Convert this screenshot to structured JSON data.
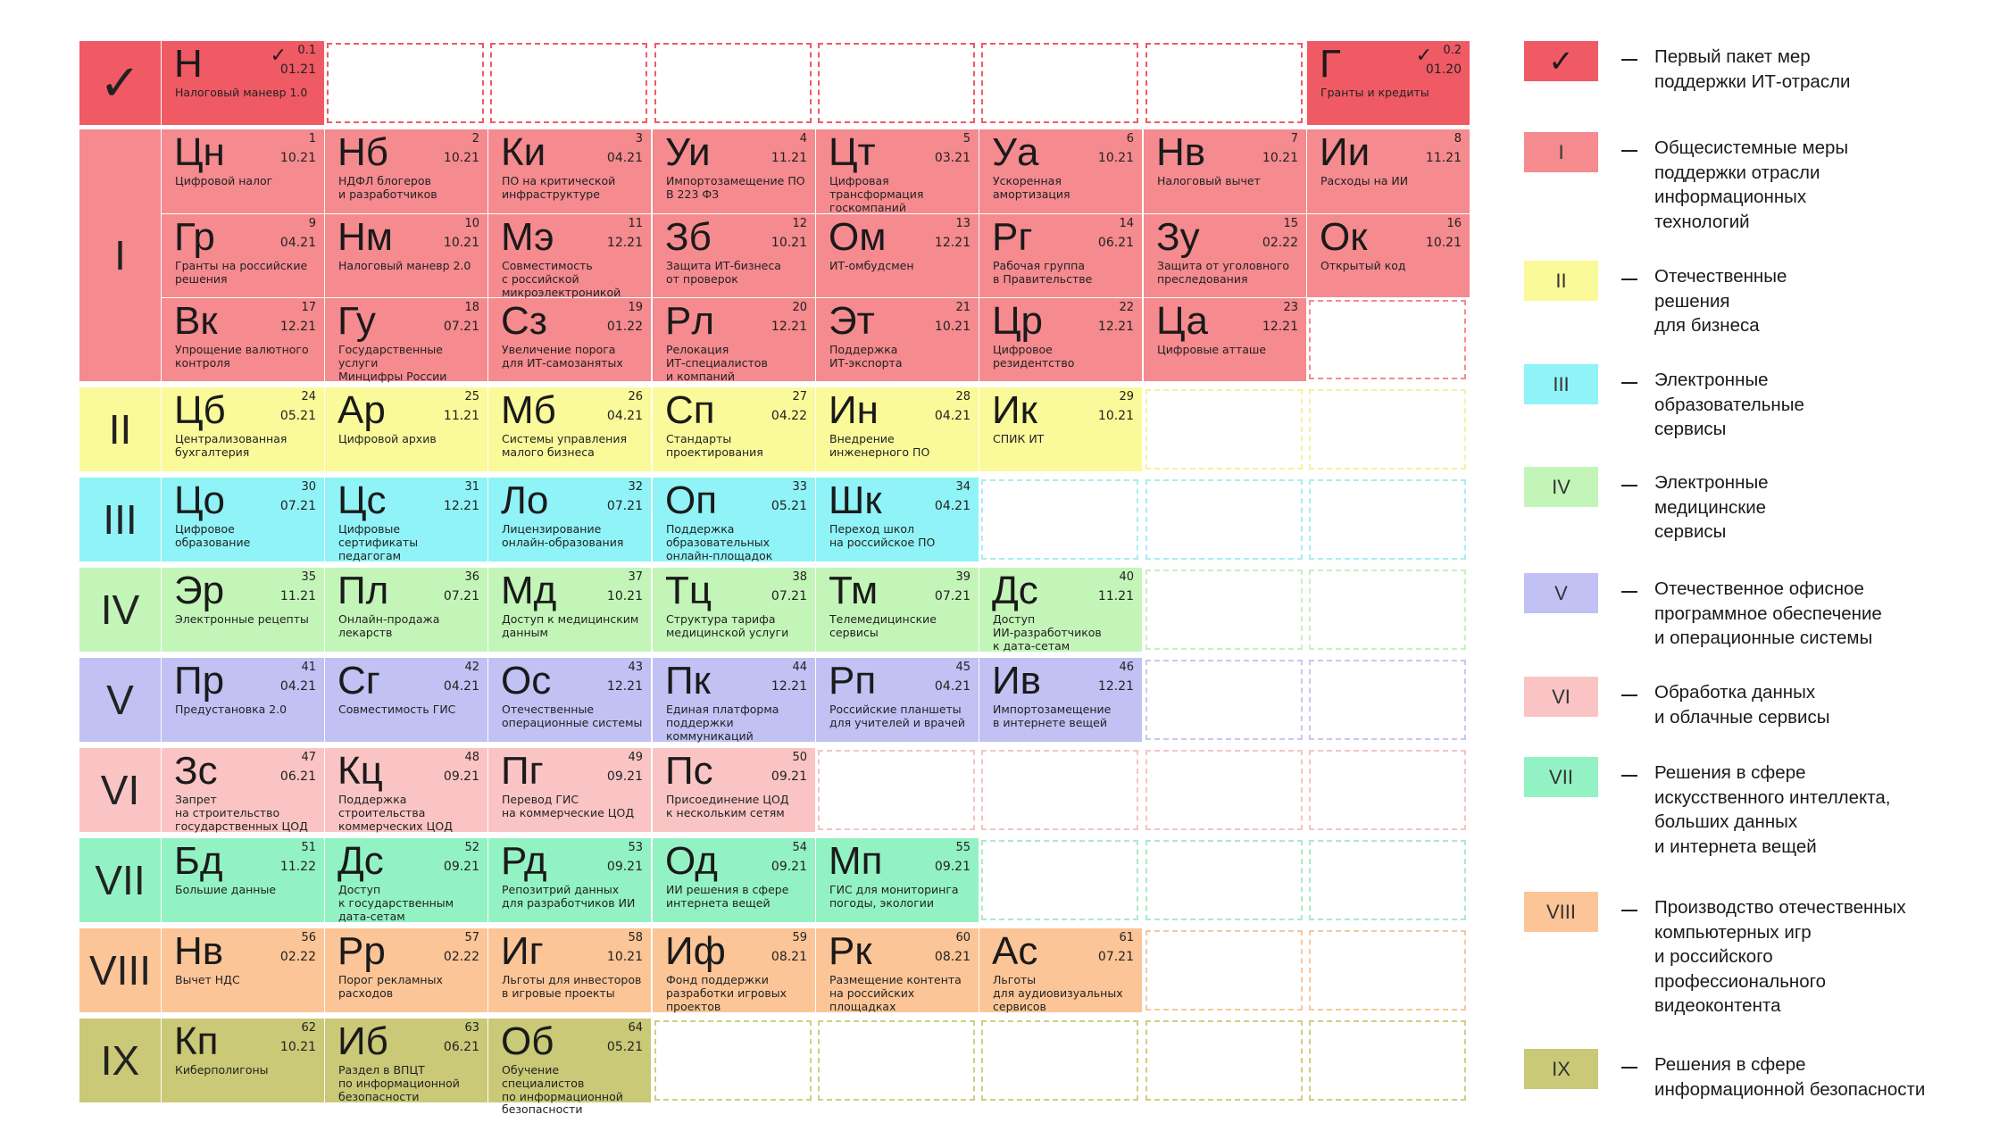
{
  "groups": [
    {
      "id": "check",
      "label": "✓",
      "color": "#f05a64",
      "empty_border": "#f05a64"
    },
    {
      "id": "I",
      "label": "I",
      "color": "#f58a8f",
      "empty_border": "#f58a8f"
    },
    {
      "id": "II",
      "label": "II",
      "color": "#fafa9a",
      "empty_border": "#f3f3a0"
    },
    {
      "id": "III",
      "label": "III",
      "color": "#8ff3f7",
      "empty_border": "#a6eef0"
    },
    {
      "id": "IV",
      "label": "IV",
      "color": "#c3f5b8",
      "empty_border": "#c8f0bf"
    },
    {
      "id": "V",
      "label": "V",
      "color": "#c1c1f4",
      "empty_border": "#c8c8f0"
    },
    {
      "id": "VI",
      "label": "VI",
      "color": "#fbc4c4",
      "empty_border": "#f5c4c4"
    },
    {
      "id": "VII",
      "label": "VII",
      "color": "#93f2c3",
      "empty_border": "#a8ecc8"
    },
    {
      "id": "VIII",
      "label": "VIII",
      "color": "#fcc597",
      "empty_border": "#f5c8a0"
    },
    {
      "id": "IX",
      "label": "IX",
      "color": "#c9c977",
      "empty_border": "#cfcf80"
    }
  ],
  "rows": [
    {
      "group": "check",
      "cells": [
        {
          "sym": "Н",
          "num": "0.1",
          "date": "01.21",
          "name": "Налоговый маневр 1.0",
          "check": true
        },
        null,
        null,
        null,
        null,
        null,
        null,
        {
          "sym": "Г",
          "num": "0.2",
          "date": "01.20",
          "name": "Гранты и кредиты",
          "check": true
        }
      ]
    },
    {
      "group": "I",
      "cells": [
        {
          "sym": "Цн",
          "num": "1",
          "date": "10.21",
          "name": "Цифровой налог"
        },
        {
          "sym": "Нб",
          "num": "2",
          "date": "10.21",
          "name": "НДФЛ блогеров\nи разработчиков"
        },
        {
          "sym": "Ки",
          "num": "3",
          "date": "04.21",
          "name": "ПО на критической\nинфраструктуре"
        },
        {
          "sym": "Уи",
          "num": "4",
          "date": "11.21",
          "name": "Импортозамещение ПО\nВ 223 ФЗ"
        },
        {
          "sym": "Цт",
          "num": "5",
          "date": "03.21",
          "name": "Цифровая\nтрансформация\nгоскомпаний"
        },
        {
          "sym": "Уа",
          "num": "6",
          "date": "10.21",
          "name": "Ускоренная\nамортизация"
        },
        {
          "sym": "Нв",
          "num": "7",
          "date": "10.21",
          "name": "Налоговый вычет"
        },
        {
          "sym": "Ии",
          "num": "8",
          "date": "11.21",
          "name": "Расходы на ИИ"
        }
      ]
    },
    {
      "group": "I",
      "cells": [
        {
          "sym": "Гр",
          "num": "9",
          "date": "04.21",
          "name": "Гранты на российские\nрешения"
        },
        {
          "sym": "Нм",
          "num": "10",
          "date": "10.21",
          "name": "Налоговый маневр 2.0"
        },
        {
          "sym": "Мэ",
          "num": "11",
          "date": "12.21",
          "name": "Совместимость\nс российской\nмикроэлектроникой"
        },
        {
          "sym": "Зб",
          "num": "12",
          "date": "10.21",
          "name": "Защита ИТ-бизнеса\nот проверок"
        },
        {
          "sym": "Ом",
          "num": "13",
          "date": "12.21",
          "name": "ИТ-омбудсмен"
        },
        {
          "sym": "Рг",
          "num": "14",
          "date": "06.21",
          "name": "Рабочая группа\nв Правительстве"
        },
        {
          "sym": "Зу",
          "num": "15",
          "date": "02.22",
          "name": "Защита от уголовного\nпреследования"
        },
        {
          "sym": "Ок",
          "num": "16",
          "date": "10.21",
          "name": "Открытый код"
        }
      ]
    },
    {
      "group": "I",
      "cells": [
        {
          "sym": "Вк",
          "num": "17",
          "date": "12.21",
          "name": "Упрощение валютного\nконтроля"
        },
        {
          "sym": "Гу",
          "num": "18",
          "date": "07.21",
          "name": "Государственные\nуслуги\nМинцифры России"
        },
        {
          "sym": "Сз",
          "num": "19",
          "date": "01.22",
          "name": "Увеличение порога\nдля ИТ-самозанятых"
        },
        {
          "sym": "Рл",
          "num": "20",
          "date": "12.21",
          "name": "Релокация\nИТ-специалистов\nи компаний"
        },
        {
          "sym": "Эт",
          "num": "21",
          "date": "10.21",
          "name": "Поддержка\nИТ-экспорта"
        },
        {
          "sym": "Цр",
          "num": "22",
          "date": "12.21",
          "name": "Цифровое резидентство"
        },
        {
          "sym": "Ца",
          "num": "23",
          "date": "12.21",
          "name": "Цифровые атташе"
        },
        null
      ]
    },
    {
      "group": "II",
      "cells": [
        {
          "sym": "Цб",
          "num": "24",
          "date": "05.21",
          "name": "Централизованная\nбухгалтерия"
        },
        {
          "sym": "Ар",
          "num": "25",
          "date": "11.21",
          "name": "Цифровой архив"
        },
        {
          "sym": "Мб",
          "num": "26",
          "date": "04.21",
          "name": "Системы управления\nмалого бизнеса"
        },
        {
          "sym": "Сп",
          "num": "27",
          "date": "04.22",
          "name": "Стандарты\nпроектирования"
        },
        {
          "sym": "Ин",
          "num": "28",
          "date": "04.21",
          "name": "Внедрение\nинженерного ПО"
        },
        {
          "sym": "Ик",
          "num": "29",
          "date": "10.21",
          "name": "СПИК ИТ"
        },
        null,
        null
      ]
    },
    {
      "group": "III",
      "cells": [
        {
          "sym": "Цо",
          "num": "30",
          "date": "07.21",
          "name": "Цифровое\nобразование"
        },
        {
          "sym": "Цс",
          "num": "31",
          "date": "12.21",
          "name": "Цифровые\nсертификаты\nпедагогам"
        },
        {
          "sym": "Ло",
          "num": "32",
          "date": "07.21",
          "name": "Лицензирование\nонлайн-образования"
        },
        {
          "sym": "Оп",
          "num": "33",
          "date": "05.21",
          "name": "Поддержка\nобразовательных\nонлайн-площадок"
        },
        {
          "sym": "Шк",
          "num": "34",
          "date": "04.21",
          "name": "Переход школ\nна российское ПО"
        },
        null,
        null,
        null
      ]
    },
    {
      "group": "IV",
      "cells": [
        {
          "sym": "Эр",
          "num": "35",
          "date": "11.21",
          "name": "Электронные рецепты"
        },
        {
          "sym": "Пл",
          "num": "36",
          "date": "07.21",
          "name": "Онлайн-продажа\nлекарств"
        },
        {
          "sym": "Мд",
          "num": "37",
          "date": "10.21",
          "name": "Доступ к медицинским\nданным"
        },
        {
          "sym": "Тц",
          "num": "38",
          "date": "07.21",
          "name": "Структура тарифа\nмедицинской услуги"
        },
        {
          "sym": "Тм",
          "num": "39",
          "date": "07.21",
          "name": "Телемедицинские\nсервисы"
        },
        {
          "sym": "Дс",
          "num": "40",
          "date": "11.21",
          "name": "Доступ\nИИ-разработчиков\nк дата-сетам"
        },
        null,
        null
      ]
    },
    {
      "group": "V",
      "cells": [
        {
          "sym": "Пр",
          "num": "41",
          "date": "04.21",
          "name": "Предустановка 2.0"
        },
        {
          "sym": "Сг",
          "num": "42",
          "date": "04.21",
          "name": "Совместимость ГИС"
        },
        {
          "sym": "Ос",
          "num": "43",
          "date": "12.21",
          "name": "Отечественные\nоперационные системы"
        },
        {
          "sym": "Пк",
          "num": "44",
          "date": "12.21",
          "name": "Единая платформа\nподдержки\nкоммуникаций"
        },
        {
          "sym": "Рп",
          "num": "45",
          "date": "04.21",
          "name": "Российские планшеты\nдля учителей и врачей"
        },
        {
          "sym": "Ив",
          "num": "46",
          "date": "12.21",
          "name": "Импортозамещение\nв интернете вещей"
        },
        null,
        null
      ]
    },
    {
      "group": "VI",
      "cells": [
        {
          "sym": "Зс",
          "num": "47",
          "date": "06.21",
          "name": "Запрет\nна строительство\nгосударственных ЦОД"
        },
        {
          "sym": "Кц",
          "num": "48",
          "date": "09.21",
          "name": "Поддержка\nстроительства\nкоммерческих ЦОД"
        },
        {
          "sym": "Пг",
          "num": "49",
          "date": "09.21",
          "name": "Перевод ГИС\nна коммерческие ЦОД"
        },
        {
          "sym": "Пс",
          "num": "50",
          "date": "09.21",
          "name": "Присоединение ЦОД\nк нескольким сетям"
        },
        null,
        null,
        null,
        null
      ]
    },
    {
      "group": "VII",
      "cells": [
        {
          "sym": "Бд",
          "num": "51",
          "date": "11.22",
          "name": "Большие данные"
        },
        {
          "sym": "Дс",
          "num": "52",
          "date": "09.21",
          "name": "Доступ\nк государственным\nдата-сетам"
        },
        {
          "sym": "Рд",
          "num": "53",
          "date": "09.21",
          "name": "Репозитрий данных\nдля разработчиков ИИ"
        },
        {
          "sym": "Од",
          "num": "54",
          "date": "09.21",
          "name": "ИИ решения в сфере\nинтернета вещей"
        },
        {
          "sym": "Мп",
          "num": "55",
          "date": "09.21",
          "name": "ГИС для мониторинга\nпогоды, экологии"
        },
        null,
        null,
        null
      ]
    },
    {
      "group": "VIII",
      "cells": [
        {
          "sym": "Нв",
          "num": "56",
          "date": "02.22",
          "name": "Вычет НДС"
        },
        {
          "sym": "Рр",
          "num": "57",
          "date": "02.22",
          "name": "Порог рекламных\nрасходов"
        },
        {
          "sym": "Иг",
          "num": "58",
          "date": "10.21",
          "name": "Льготы для инвесторов\nв игровые проекты"
        },
        {
          "sym": "Иф",
          "num": "59",
          "date": "08.21",
          "name": "Фонд поддержки\nразработки игровых\nпроектов"
        },
        {
          "sym": "Рк",
          "num": "60",
          "date": "08.21",
          "name": "Размещение контента\nна российских\nплощадках"
        },
        {
          "sym": "Ас",
          "num": "61",
          "date": "07.21",
          "name": "Льготы\nдля аудиовизуальных\nсервисов"
        },
        null,
        null
      ]
    },
    {
      "group": "IX",
      "cells": [
        {
          "sym": "Кп",
          "num": "62",
          "date": "10.21",
          "name": "Киберполигоны"
        },
        {
          "sym": "Иб",
          "num": "63",
          "date": "06.21",
          "name": "Раздел в ВПЦТ\nпо информационной\nбезопасности"
        },
        {
          "sym": "Об",
          "num": "64",
          "date": "05.21",
          "name": "Обучение специалистов\nпо информационной\nбезопасности"
        },
        null,
        null,
        null,
        null,
        null
      ]
    }
  ],
  "legend": [
    {
      "group": "check",
      "label": "✓",
      "text": "Первый пакет мер\nподдержки ИТ-отрасли"
    },
    {
      "group": "I",
      "label": "I",
      "text": "Общесистемные меры\nподдержки отрасли\nинформационных\nтехнологий"
    },
    {
      "group": "II",
      "label": "II",
      "text": "Отечественные\nрешения\nдля бизнеса"
    },
    {
      "group": "III",
      "label": "III",
      "text": "Электронные\nобразовательные\nсервисы"
    },
    {
      "group": "IV",
      "label": "IV",
      "text": "Электронные\nмедицинские\nсервисы"
    },
    {
      "group": "V",
      "label": "V",
      "text": "Отечественное офисное\nпрограммное обеспечение\nи операционные системы"
    },
    {
      "group": "VI",
      "label": "VI",
      "text": "Обработка данных\nи облачные сервисы"
    },
    {
      "group": "VII",
      "label": "VII",
      "text": "Решения в сфере\nискусственного интеллекта,\nбольших данных\nи интернета вещей"
    },
    {
      "group": "VIII",
      "label": "VIII",
      "text": "Производство отечественных\nкомпьютерных игр\nи российского\nпрофессионального\nвидеоконтента"
    },
    {
      "group": "IX",
      "label": "IX",
      "text": "Решения в сфере\nинформационной безопасности"
    }
  ]
}
